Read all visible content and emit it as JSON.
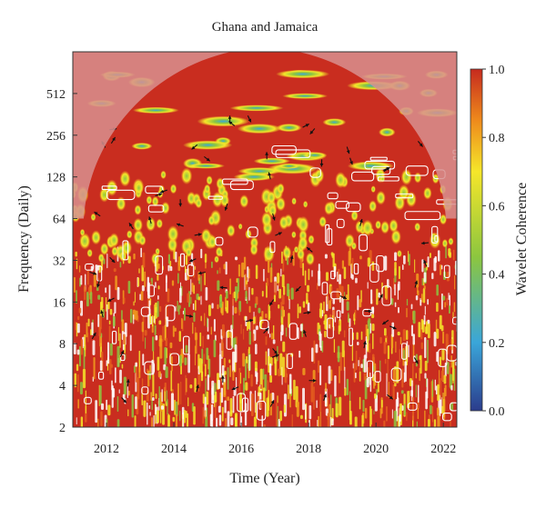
{
  "chart_data": {
    "type": "heatmap",
    "title": "Ghana and Jamaica",
    "xlabel": "Time (Year)",
    "ylabel": "Frequency (Daily)",
    "x_ticks": [
      "2012",
      "2014",
      "2016",
      "2018",
      "2020",
      "2022"
    ],
    "x_tick_values": [
      2012,
      2014,
      2016,
      2018,
      2020,
      2022
    ],
    "xlim": [
      2011.0,
      2022.4
    ],
    "y_ticks": [
      "2",
      "4",
      "8",
      "16",
      "32",
      "64",
      "128",
      "256",
      "512"
    ],
    "y_tick_values": [
      2,
      4,
      8,
      16,
      32,
      64,
      128,
      256,
      512
    ],
    "ylim": [
      2,
      1024
    ],
    "y_scale": "log2",
    "colorbar": {
      "label": "Wavelet Coherence",
      "ticks": [
        "0.0",
        "0.2",
        "0.4",
        "0.6",
        "0.8",
        "1.0"
      ],
      "tick_values": [
        0.0,
        0.2,
        0.4,
        0.6,
        0.8,
        1.0
      ],
      "range": [
        0.0,
        1.0
      ]
    },
    "background_value": 0.92,
    "colors": {
      "low": "#2b3c8c",
      "mid_low": "#3aa6d9",
      "mid": "#8cc63f",
      "mid_high": "#f5e62a",
      "high": "#cc2a1e",
      "cone_shade": "#d8918f"
    }
  }
}
